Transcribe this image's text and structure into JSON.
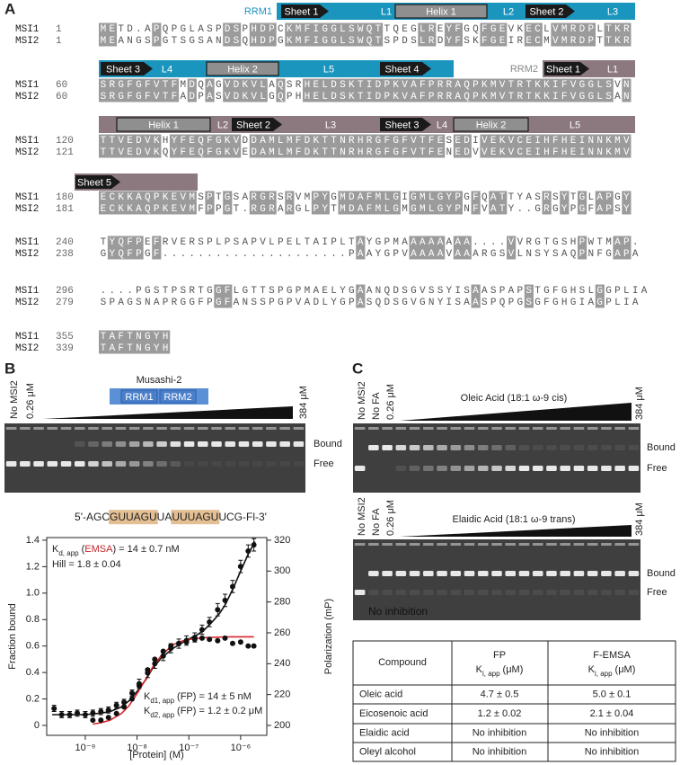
{
  "figure": {
    "panel_a": {
      "label": "A",
      "domains": {
        "rrm1": "RRM1",
        "rrm2": "RRM2"
      },
      "annotation_rows": [
        [
          "Sheet 1",
          "L1",
          "Helix 1",
          "L2",
          "Sheet 2",
          "L3"
        ],
        [
          "Sheet 3",
          "L4",
          "Helix 2",
          "L5",
          "Sheet 4",
          "Sheet 1",
          "L1"
        ],
        [
          "Helix 1",
          "L2",
          "Sheet 2",
          "L3",
          "Sheet 3",
          "L4",
          "Helix 2",
          "L5"
        ],
        [
          "Sheet 5"
        ]
      ],
      "blocks": [
        [
          {
            "name": "MSI1",
            "start": 1,
            "sequence": "METD.APQPGLASPDSPHDPCKMFIGGLSWQTTQEGLREYFGQFGEVKECLVMRDPLTKR"
          },
          {
            "name": "MSI2",
            "start": 1,
            "sequence": "MEANGSPGTSGSANDSQHDPGKMFIGGLSWQTSPDSLRDYFSKFGEIRECMVMRDPTTKR"
          }
        ],
        [
          {
            "name": "MSI1",
            "start": 60,
            "sequence": "SRGFGFVTFMDQAGVDKVLAQSRHELDSKTIDPKVAFPRRAQPKMVTRTKKIFVGGLSVN"
          },
          {
            "name": "MSI2",
            "start": 60,
            "sequence": "SRGFGFVTFADPASVDKVLGQPHHELDSKTIDPKVAFPRRAQPKMVTRTKKIFVGGLSAN"
          }
        ],
        [
          {
            "name": "MSI1",
            "start": 120,
            "sequence": "TTVEDVKHYFEQFGKVDDAMLMFDKTTNRHRGFGFVTFESEDIVEKVCEIHFHEINNKMV"
          },
          {
            "name": "MSI2",
            "start": 121,
            "sequence": "TTVEDVKQYFEQFGKVEDAMLMFDKTTNRHRGFGFVTFENEDVVEKVCEIHFHEINNKMV"
          }
        ],
        [
          {
            "name": "MSI1",
            "start": 180,
            "sequence": "ECKKAQPKEVMSPTGSARGRSRVMPYGMDAFMLGIGMLGYPGFQATTYASRSYTGLAPGY"
          },
          {
            "name": "MSI2",
            "start": 181,
            "sequence": "ECKKAQPKEVMFPPGT.RGRARGLPYTMDAFMLGMGMLGYPNFVATY..GRGYPGFAPSY"
          }
        ],
        [
          {
            "name": "MSI1",
            "start": 240,
            "sequence": "TYQFPEFRVERSPLPSAPVLPELTAIPLTAYGPMAAAAAAAA....VVRGTGSHPWTMAP."
          },
          {
            "name": "MSI2",
            "start": 238,
            "sequence": "GYQFPGF.....................PAAYGPVAAAAVAAARGSVLNSYSAQPNFGAPA"
          }
        ],
        [
          {
            "name": "MSI1",
            "start": 296,
            "sequence": "....PGSTPSRTGGFLGTTSPGPMAELYGAANQDSGVSSYISAASPAPSTGFGHSLGGPLIA"
          },
          {
            "name": "MSI2",
            "start": 279,
            "sequence": "SPAGSNAPRGGFPGFANSSPGPVADLYGPASQDSGVGNYISAASPQPGSGFGHGIAGPLIA"
          }
        ],
        [
          {
            "name": "MSI1",
            "start": 355,
            "sequence": "TAFTNGYH"
          },
          {
            "name": "MSI2",
            "start": 339,
            "sequence": "TAFTNGYH"
          }
        ]
      ]
    },
    "panel_b": {
      "label": "B",
      "lane_labels": [
        "No MSI2",
        "0.26 μM",
        "384 μM"
      ],
      "protein": "Musashi-2",
      "domains": [
        "RRM1",
        "RRM2"
      ],
      "band_labels": [
        "Bound",
        "Free"
      ],
      "rna": [
        {
          "text": "5'-AGC"
        },
        {
          "text": "GUUAGU",
          "highlight": true
        },
        {
          "text": "UA"
        },
        {
          "text": "UUUAGU",
          "highlight": true
        },
        {
          "text": "UCG-Fl-3'"
        }
      ]
    },
    "panel_c": {
      "label": "C",
      "gels": [
        {
          "title": "Oleic Acid (18:1 ω-9 cis)",
          "lane_labels": [
            "No MSI2",
            "No FA",
            "0.26 μM",
            "384 μM"
          ],
          "band_labels": [
            "Bound",
            "Free"
          ]
        },
        {
          "title": "Elaidic Acid (18:1 ω-9 trans)",
          "lane_labels": [
            "No MSI2",
            "No FA",
            "0.26 μM",
            "384 μM"
          ],
          "band_labels": [
            "Bound",
            "Free"
          ],
          "note": "No inhibition"
        }
      ],
      "table": {
        "header": {
          "compound": "Compound",
          "fp": {
            "title": "FP",
            "parts": [
              {
                "text": "K"
              },
              {
                "text": "i, app",
                "sub": true
              },
              {
                "text": "(μM)"
              }
            ]
          },
          "emsa": {
            "title": "F-EMSA",
            "parts": [
              {
                "text": "K"
              },
              {
                "text": "i, app",
                "sub": true
              },
              {
                "text": "(μM)"
              }
            ]
          }
        },
        "rows": [
          [
            "Oleic acid",
            "4.7 ± 0.5",
            "5.0 ± 0.1"
          ],
          [
            "Eicosenoic acid",
            "1.2 ± 0.02",
            "2.1 ± 0.04"
          ],
          [
            "Elaidic acid",
            "No inhibition",
            "No inhibition"
          ],
          [
            "Oleyl alcohol",
            "No inhibition",
            "No inhibition"
          ]
        ]
      }
    }
  },
  "chart_data": {
    "type": "scatter",
    "log_x": true,
    "xlabel": "[Protein] (M)",
    "ylabel": "Fraction bound",
    "y2label": "Polarization (mP)",
    "xlim": [
      1.8e-10,
      3.2e-06
    ],
    "xticks": [
      {
        "value": 1e-09,
        "label": "10⁻⁹"
      },
      {
        "value": 1e-08,
        "label": "10⁻⁸"
      },
      {
        "value": 1e-07,
        "label": "10⁻⁷"
      },
      {
        "value": 1e-06,
        "label": "10⁻⁶"
      }
    ],
    "ylim": [
      -0.075,
      1.42
    ],
    "yticks": [
      0,
      0.2,
      0.4,
      0.6,
      0.8,
      {
        "value": 1,
        "label": "1.0"
      },
      1.2,
      1.4
    ],
    "y2lim": [
      193.6,
      321.7
    ],
    "y2ticks": [
      200,
      220,
      240,
      260,
      280,
      300,
      320
    ],
    "series": [
      {
        "mode": "line",
        "axis": "y2",
        "color": "#111111",
        "x": [
          2.3e-10,
          5e-10,
          1e-09,
          2e-09,
          3e-09,
          5e-09,
          7e-09,
          1e-08,
          1.5e-08,
          2e-08,
          3e-08,
          5e-08,
          7e-08,
          1e-07,
          1.5e-07,
          2e-07,
          3e-07,
          4e-07,
          5e-07,
          7e-07,
          1e-06,
          1.4e-06,
          1.9e-06
        ],
        "values": [
          207,
          207,
          207,
          208,
          209,
          212,
          216,
          222,
          230,
          237,
          244,
          250,
          253,
          256,
          259,
          262,
          268,
          273,
          278,
          288,
          300,
          311,
          319
        ]
      },
      {
        "mode": "line",
        "axis": "y",
        "color": "#d7262b",
        "x": [
          1.4e-09,
          2e-09,
          3e-09,
          5e-09,
          7e-09,
          1e-08,
          1.4e-08,
          2e-08,
          3e-08,
          5e-08,
          7e-08,
          1e-07,
          2e-07,
          5e-07,
          1e-06,
          1.8e-06
        ],
        "values": [
          0.01,
          0.02,
          0.039,
          0.09,
          0.149,
          0.24,
          0.335,
          0.44,
          0.534,
          0.61,
          0.635,
          0.65,
          0.664,
          0.669,
          0.67,
          0.67
        ]
      },
      {
        "mode": "markers",
        "axis": "y2",
        "color": "#111111",
        "x": [
          2.5e-10,
          3.5e-10,
          5e-10,
          7e-10,
          1e-09,
          1.4e-09,
          2e-09,
          2.8e-09,
          4e-09,
          5.6e-09,
          8e-09,
          1.1e-08,
          1.6e-08,
          2.2e-08,
          3.2e-08,
          4.5e-08,
          6.4e-08,
          9e-08,
          1.3e-07,
          1.8e-07,
          2.5e-07,
          3.6e-07,
          5e-07,
          7e-07,
          1e-06,
          1.4e-06,
          1.8e-06
        ],
        "values": [
          211,
          207,
          207,
          208,
          207,
          208,
          209,
          210,
          213,
          215,
          221,
          227,
          234,
          240,
          245,
          250,
          253,
          255,
          257,
          262,
          267,
          275,
          281,
          290,
          303,
          313,
          317
        ],
        "errors": [
          2,
          2,
          2,
          2,
          2,
          2,
          2,
          2,
          2,
          2,
          2,
          3,
          3,
          3,
          3,
          3,
          3,
          3,
          3,
          3,
          3,
          4,
          4,
          4,
          4,
          4,
          4
        ]
      },
      {
        "mode": "markers",
        "axis": "y",
        "color": "#111111",
        "x": [
          1.4e-09,
          2e-09,
          2.8e-09,
          4e-09,
          5.6e-09,
          8e-09,
          1.1e-08,
          1.6e-08,
          2.2e-08,
          3.2e-08,
          4.5e-08,
          6.4e-08,
          9e-08,
          1.3e-07,
          1.8e-07,
          2.5e-07,
          3.6e-07,
          5e-07,
          7e-07,
          1e-06,
          1.4e-06,
          1.8e-06
        ],
        "values": [
          0.04,
          0.04,
          0.06,
          0.09,
          0.14,
          0.2,
          0.3,
          0.42,
          0.5,
          0.56,
          0.6,
          0.62,
          0.63,
          0.65,
          0.66,
          0.65,
          0.64,
          0.66,
          0.62,
          0.63,
          0.6,
          0.6
        ]
      }
    ],
    "annotations": [
      [
        {
          "text": "K"
        },
        {
          "text": "d, app",
          "sub": true
        },
        {
          "text": "("
        },
        {
          "text": "EMSA",
          "color": "#c0272d"
        },
        {
          "text": ") = 14 ± 0.7 nM"
        }
      ],
      [
        {
          "text": "Hill = 1.8 ± 0.04"
        }
      ],
      [
        {
          "text": "K"
        },
        {
          "text": "d1, app",
          "sub": true
        },
        {
          "text": "(FP) = 14 ± 5 nM"
        }
      ],
      [
        {
          "text": "K"
        },
        {
          "text": "d2, app",
          "sub": true
        },
        {
          "text": "(FP) = 1.2 ± 0.2 μM"
        }
      ]
    ]
  }
}
